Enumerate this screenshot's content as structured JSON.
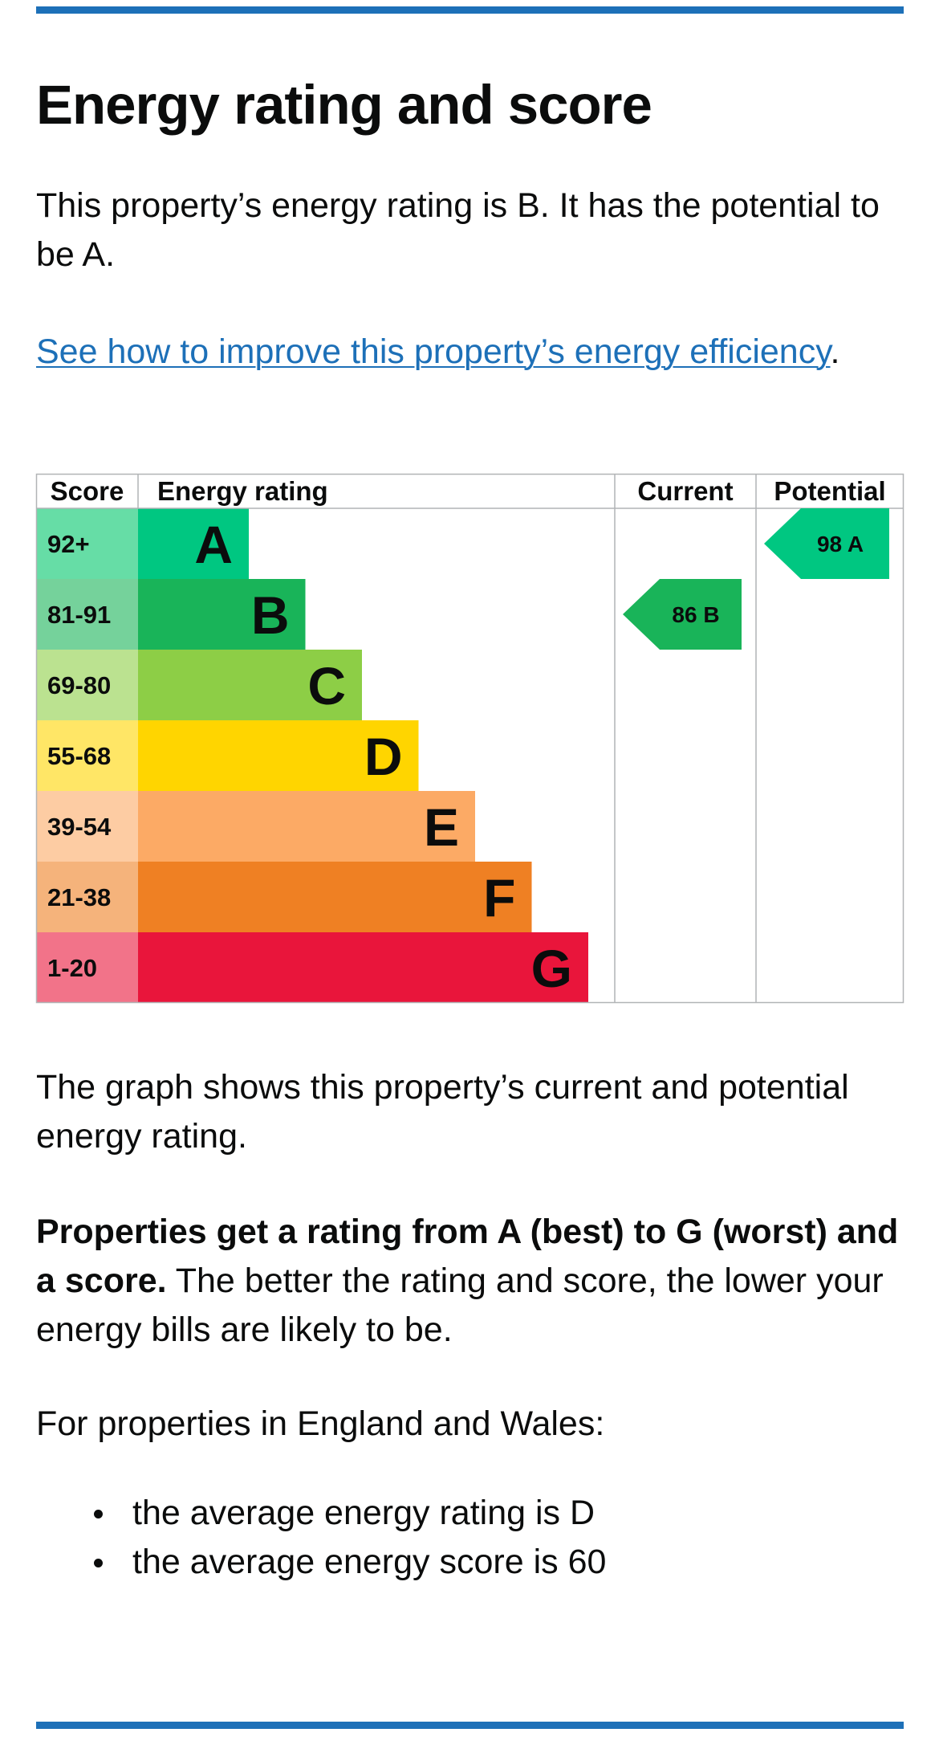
{
  "title": "Energy rating and score",
  "intro": "This property’s energy rating is B. It has the potential to be A.",
  "improve_link": "See how to improve this property’s energy efficiency",
  "improve_link_suffix": ".",
  "graph_caption": "The graph shows this property’s current and potential energy rating.",
  "rating_info_bold": "Properties get a rating from A (best) to G (worst) and a score.",
  "rating_info_rest": " The better the rating and score, the lower your energy bills are likely to be.",
  "region_intro": "For properties in England and Wales:",
  "averages": [
    "the average energy rating is D",
    "the average energy score is 60"
  ],
  "colors": {
    "link": "#1d70b8",
    "rule": "#1d70b8"
  },
  "chart_data": {
    "type": "table",
    "headers": {
      "score": "Score",
      "rating": "Energy rating",
      "current": "Current",
      "potential": "Potential"
    },
    "bands": [
      {
        "letter": "A",
        "range": "92+",
        "color": "#00c781",
        "score_bg": "#66dda6"
      },
      {
        "letter": "B",
        "range": "81-91",
        "color": "#19b459",
        "score_bg": "#75d29b"
      },
      {
        "letter": "C",
        "range": "69-80",
        "color": "#8dce46",
        "score_bg": "#bbe290"
      },
      {
        "letter": "D",
        "range": "55-68",
        "color": "#ffd500",
        "score_bg": "#ffe666"
      },
      {
        "letter": "E",
        "range": "39-54",
        "color": "#fcaa65",
        "score_bg": "#fdcca3"
      },
      {
        "letter": "F",
        "range": "21-38",
        "color": "#ef8023",
        "score_bg": "#f5b37b"
      },
      {
        "letter": "G",
        "range": "1-20",
        "color": "#e9153b",
        "score_bg": "#f27389"
      }
    ],
    "current": {
      "score": 86,
      "letter": "B",
      "label": "86  B"
    },
    "potential": {
      "score": 98,
      "letter": "A",
      "label": "98  A"
    }
  }
}
